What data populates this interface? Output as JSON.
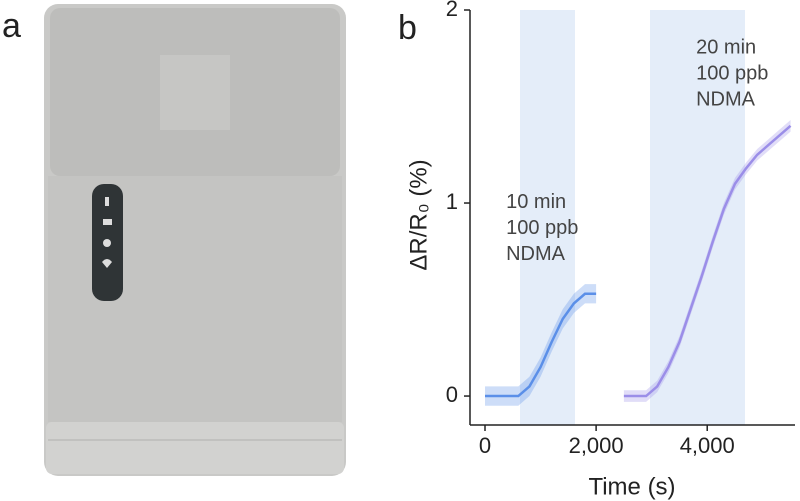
{
  "panels": {
    "a": "a",
    "b": "b"
  },
  "chart_data": {
    "type": "line",
    "xlabel": "Time (s)",
    "ylabel": "ΔR/R₀ (%)",
    "xlim": [
      -270,
      5580
    ],
    "ylim": [
      -0.15,
      2
    ],
    "xticks": [
      0,
      {
        "value": 2000,
        "label": "2,000"
      },
      {
        "value": 4000,
        "label": "4,000"
      }
    ],
    "yticks": [
      0,
      1,
      2
    ],
    "shaded_regions": [
      [
        630,
        1620
      ],
      [
        2970,
        4680
      ]
    ],
    "shade_color": "#e4edf9",
    "series": [
      {
        "color": "#5b8fe8",
        "band": 0.05,
        "x": [
          0,
          200,
          400,
          600,
          800,
          1000,
          1200,
          1400,
          1600,
          1800,
          2000
        ],
        "values": [
          0,
          0,
          0,
          0,
          0.05,
          0.15,
          0.28,
          0.4,
          0.48,
          0.53,
          0.53
        ]
      },
      {
        "color": "#9b8ee8",
        "band": 0.03,
        "x": [
          2500,
          2700,
          2900,
          3100,
          3300,
          3500,
          3700,
          3900,
          4100,
          4300,
          4500,
          4700,
          4900,
          5100,
          5300,
          5500
        ],
        "values": [
          0,
          0,
          0,
          0.05,
          0.15,
          0.28,
          0.45,
          0.62,
          0.8,
          0.97,
          1.1,
          1.18,
          1.25,
          1.3,
          1.35,
          1.4
        ]
      }
    ],
    "annotations": [
      {
        "x": 380,
        "y": 1.0,
        "lines": [
          "10 min",
          "100 ppb",
          "NDMA"
        ]
      },
      {
        "x": 3800,
        "y": 1.8,
        "lines": [
          "20 min",
          "100 ppb",
          "NDMA"
        ]
      }
    ]
  }
}
